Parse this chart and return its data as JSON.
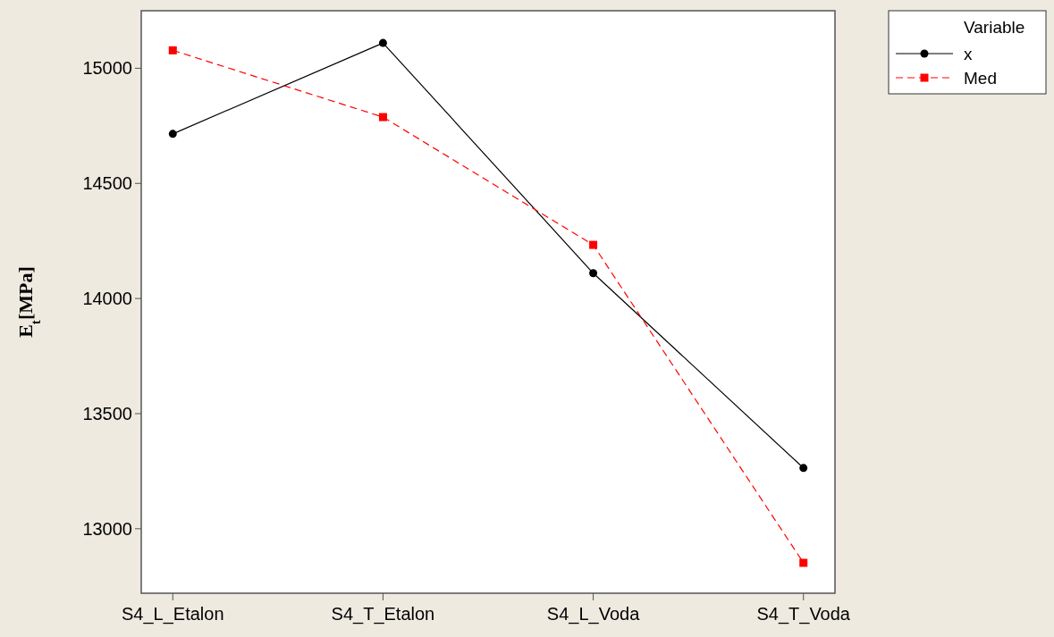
{
  "chart_data": {
    "type": "line",
    "ylabel": "E$_{t}$[MPa]",
    "legend_title": "Variable",
    "categories": [
      "S4_L_Etalon",
      "S4_T_Etalon",
      "S4_L_Voda",
      "S4_T_Voda"
    ],
    "series": [
      {
        "name": "x",
        "color": "#000000",
        "values": [
          14715,
          15110,
          14110,
          13264
        ],
        "marker": "circle",
        "line_style": "solid"
      },
      {
        "name": "Med",
        "color": "#ff0000",
        "values": [
          15078,
          14788,
          14233,
          12852
        ],
        "marker": "square",
        "line_style": "dashed"
      }
    ],
    "ylim": [
      12720,
      15250
    ],
    "yticks": [
      13000,
      13500,
      14000,
      14500,
      15000
    ],
    "grid": false,
    "legend": "top right"
  }
}
